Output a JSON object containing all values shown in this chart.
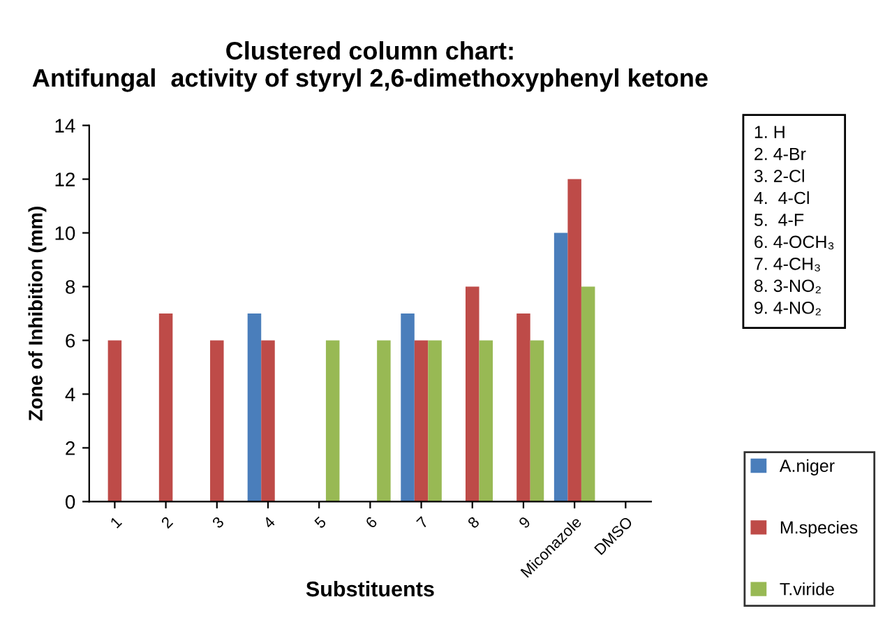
{
  "chart_data": {
    "type": "bar",
    "title": "Clustered column chart:\nAntifungal  activity of styryl 2,6-dimethoxyphenyl ketone",
    "xlabel": "Substituents",
    "ylabel": "Zone of Inhibition (mm)",
    "categories": [
      "1",
      "2",
      "3",
      "4",
      "5",
      "6",
      "7",
      "8",
      "9",
      "Miconazole",
      "DMSO"
    ],
    "series": [
      {
        "name": "A.niger",
        "color": "#4a7ebb",
        "values": [
          null,
          null,
          null,
          7,
          null,
          null,
          7,
          null,
          null,
          10,
          null
        ]
      },
      {
        "name": "M.species",
        "color": "#be4b48",
        "values": [
          6,
          7,
          6,
          6,
          null,
          null,
          6,
          8,
          7,
          12,
          null
        ]
      },
      {
        "name": "T.viride",
        "color": "#98b954",
        "values": [
          null,
          null,
          null,
          null,
          6,
          6,
          6,
          6,
          6,
          8,
          null
        ]
      }
    ],
    "ylim": [
      0,
      14
    ],
    "yticks": [
      0,
      2,
      4,
      6,
      8,
      10,
      12,
      14
    ],
    "grid": false,
    "legend": "right",
    "annotations": [
      "1. H\n2. 4-Br\n3. 2-Cl\n4.  4-Cl\n5.  4-F\n6. 4-OCH₃\n7. 4-CH₃\n8. 3-NO₂\n9. 4-NO₂"
    ]
  }
}
